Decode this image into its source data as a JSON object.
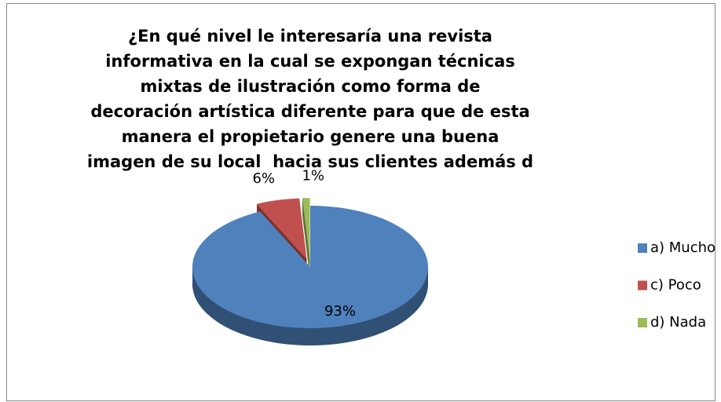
{
  "chart_data": {
    "type": "pie",
    "title": "¿En qué nivel le interesaría una revista informativa en la cual se expongan técnicas mixtas de ilustración como forma de decoración artística diferente para que de esta manera el propietario genere una buena imagen de su local  hacia sus clientes además d",
    "categories": [
      "a) Mucho",
      "c) Poco",
      "d) Nada"
    ],
    "values": [
      93,
      6,
      1
    ],
    "value_labels": [
      "93%",
      "6%",
      "1%"
    ],
    "colors": [
      "#4f81bd",
      "#c0504d",
      "#9bbb59"
    ],
    "legend": "right"
  }
}
